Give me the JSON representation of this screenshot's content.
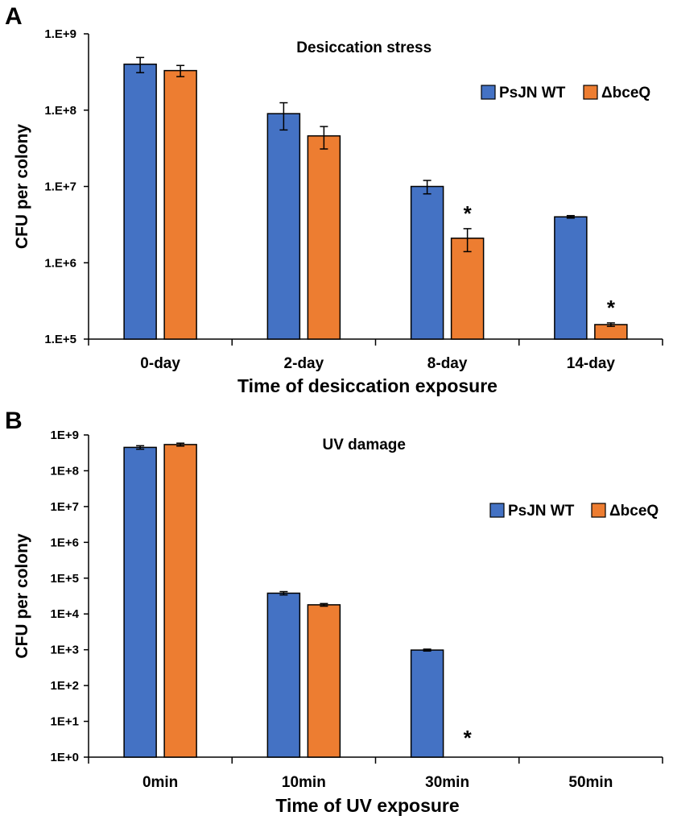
{
  "chart_data": [
    {
      "panel": "A",
      "type": "bar",
      "scale": "log",
      "title": "Desiccation stress",
      "xlabel": "Time of desiccation exposure",
      "ylabel": "CFU per colony",
      "ylim": [
        100000,
        1000000000
      ],
      "yticks": [
        100000,
        1000000,
        10000000,
        100000000,
        1000000000
      ],
      "ytick_labels": [
        "1.E+5",
        "1.E+6",
        "1.E+7",
        "1.E+8",
        "1.E+9"
      ],
      "categories": [
        "0-day",
        "2-day",
        "8-day",
        "14-day"
      ],
      "legend_position": "top-right",
      "series": [
        {
          "name": "PsJN WT",
          "color": "#4472c4",
          "values": [
            400000000,
            90000000,
            10000000,
            4000000
          ],
          "errors": [
            90000000,
            35000000,
            2000000,
            150000
          ]
        },
        {
          "name": "ΔbceQ",
          "color": "#ed7d31",
          "values": [
            330000000,
            46000000,
            2100000,
            155000
          ],
          "errors": [
            55000000,
            15000000,
            700000,
            8000
          ]
        }
      ],
      "significance": [
        {
          "category": "8-day",
          "series": "ΔbceQ",
          "mark": "*"
        },
        {
          "category": "14-day",
          "series": "ΔbceQ",
          "mark": "*"
        }
      ]
    },
    {
      "panel": "B",
      "type": "bar",
      "scale": "log",
      "title": "UV damage",
      "xlabel": "Time of UV exposure",
      "ylabel": "CFU per colony",
      "ylim": [
        1,
        1000000000
      ],
      "yticks": [
        1,
        10,
        100,
        1000,
        10000,
        100000,
        1000000,
        10000000,
        100000000,
        1000000000
      ],
      "ytick_labels": [
        "1E+0",
        "1E+1",
        "1E+2",
        "1E+3",
        "1E+4",
        "1E+5",
        "1E+6",
        "1E+7",
        "1E+8",
        "1E+9"
      ],
      "categories": [
        "0min",
        "10min",
        "30min",
        "50min"
      ],
      "legend_position": "right",
      "series": [
        {
          "name": "PsJN WT",
          "color": "#4472c4",
          "values": [
            450000000,
            38000,
            980,
            1
          ],
          "errors": [
            50000000,
            4000,
            60,
            0
          ]
        },
        {
          "name": "ΔbceQ",
          "color": "#ed7d31",
          "values": [
            540000000,
            18000,
            1,
            1
          ],
          "errors": [
            50000000,
            1500,
            0,
            0
          ]
        }
      ],
      "significance": [
        {
          "category": "30min",
          "series": "ΔbceQ",
          "mark": "*"
        }
      ]
    }
  ]
}
